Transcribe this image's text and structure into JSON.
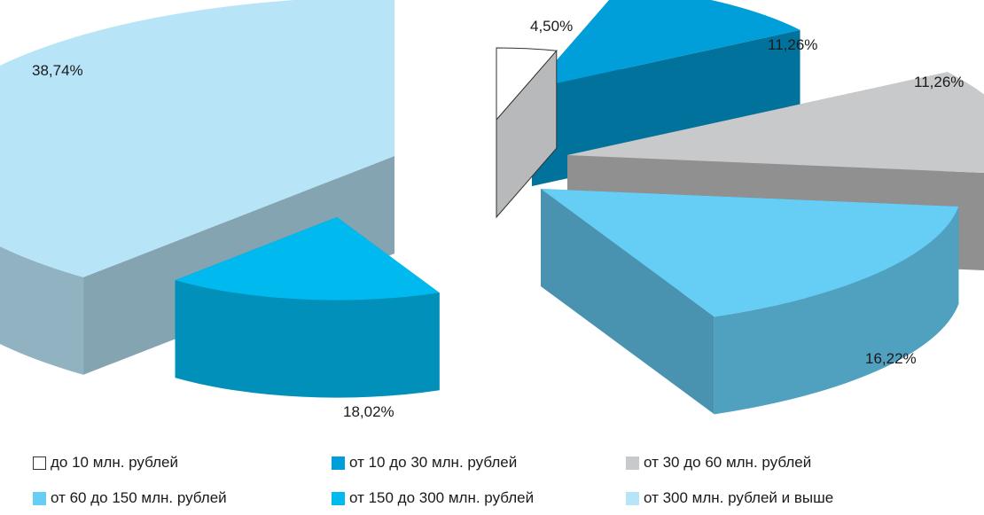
{
  "chart_data": {
    "type": "pie",
    "title": "",
    "categories": [
      "до 10 млн. рублей",
      "от 10 до 30 млн. рублей",
      "от 30 до 60 млн. рублей",
      "от 60 до 150 млн. рублей",
      "от 150 до 300 млн. рублей",
      "от 300 млн. рублей и выше"
    ],
    "values": [
      4.5,
      11.26,
      11.26,
      16.22,
      18.02,
      38.74
    ],
    "value_labels": [
      "4,50%",
      "11,26%",
      "11,26%",
      "16,22%",
      "18,02%",
      "38,74%"
    ],
    "colors": [
      "#ffffff",
      "#009fda",
      "#c8c9cb",
      "#66cdf5",
      "#00b9ee",
      "#b8e4f8"
    ],
    "style": "3d-exploded",
    "legend_placement": "bottom"
  }
}
